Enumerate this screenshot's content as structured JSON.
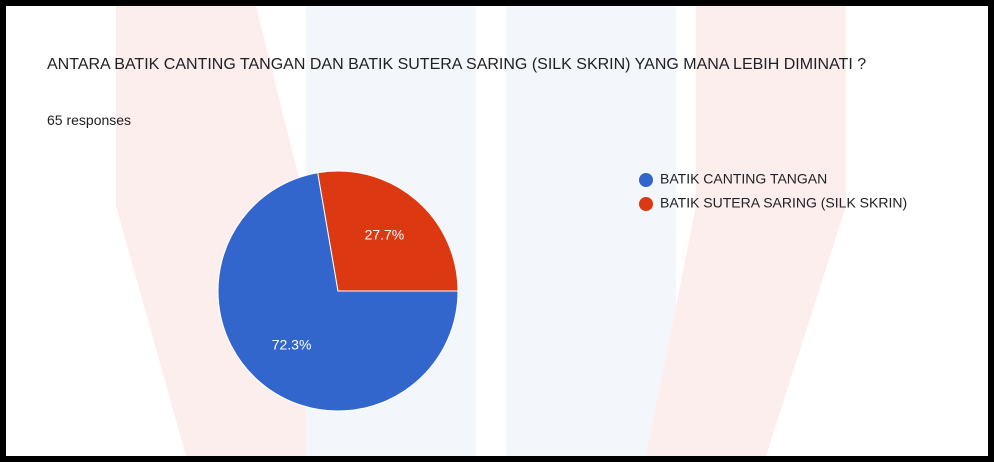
{
  "chart_data": {
    "type": "pie",
    "title": "ANTARA BATIK CANTING TANGAN DAN BATIK SUTERA SARING (SILK SKRIN) YANG MANA LEBIH DIMINATI ?",
    "subtitle": "65 responses",
    "categories": [
      "BATIK CANTING TANGAN",
      "BATIK SUTERA SARING (SILK SKRIN)"
    ],
    "values": [
      72.3,
      27.7
    ],
    "value_labels": [
      "72.3%",
      "27.7%"
    ],
    "colors": [
      "#3366cc",
      "#dc3912"
    ],
    "legend": "right"
  }
}
